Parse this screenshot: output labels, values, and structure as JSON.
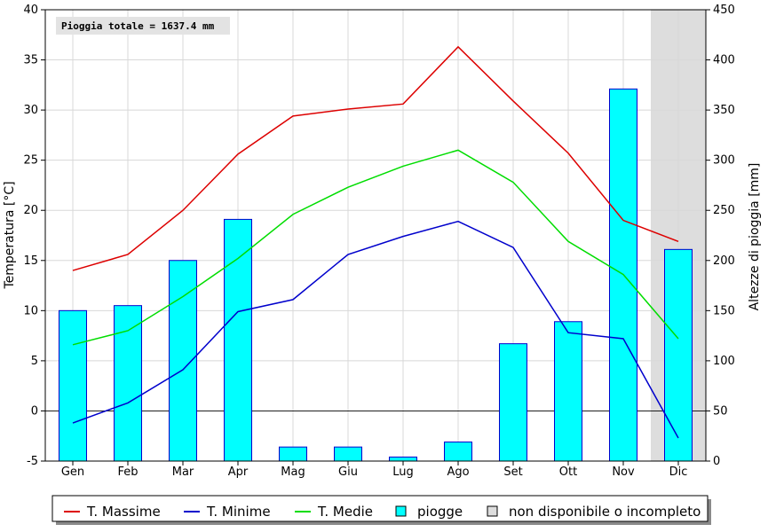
{
  "chart_data": {
    "type": "bar",
    "annotation": "Pioggia totale = 1637.4 mm",
    "categories": [
      "Gen",
      "Feb",
      "Mar",
      "Apr",
      "Mag",
      "Giu",
      "Lug",
      "Ago",
      "Set",
      "Ott",
      "Nov",
      "Dic"
    ],
    "ylabel_left": "Temperatura [°C]",
    "ylabel_right": "Altezze di pioggia [mm]",
    "ylim_left": [
      -5,
      40
    ],
    "ylim_right": [
      0,
      450
    ],
    "yticks_left": [
      "-5",
      "0",
      "5",
      "10",
      "15",
      "20",
      "25",
      "30",
      "35",
      "40"
    ],
    "yticks_right": [
      "0",
      "50",
      "100",
      "150",
      "200",
      "250",
      "300",
      "350",
      "400",
      "450"
    ],
    "grid": true,
    "legend_position": "bottom",
    "unavailable_months": [
      "Dic"
    ],
    "series": [
      {
        "name": "T. Massime",
        "kind": "line",
        "axis": "left",
        "color": "#dd0000",
        "values": [
          14.0,
          15.6,
          20.0,
          25.6,
          29.4,
          30.1,
          30.6,
          36.3,
          30.9,
          25.7,
          19.0,
          16.9
        ]
      },
      {
        "name": "T. Minime",
        "kind": "line",
        "axis": "left",
        "color": "#0000cc",
        "values": [
          -1.2,
          0.8,
          4.1,
          9.9,
          11.1,
          15.6,
          17.4,
          18.9,
          16.3,
          7.8,
          7.2,
          -2.7
        ]
      },
      {
        "name": "T. Medie",
        "kind": "line",
        "axis": "left",
        "color": "#00dd00",
        "values": [
          6.6,
          8.0,
          11.4,
          15.2,
          19.6,
          22.3,
          24.4,
          26.0,
          22.8,
          16.9,
          13.6,
          7.2
        ]
      },
      {
        "name": "piogge",
        "kind": "bar",
        "axis": "right",
        "color": "#00ffff",
        "edge": "#0000cc",
        "values": [
          150,
          155,
          200,
          241,
          14,
          14,
          4,
          19,
          117,
          139,
          371,
          211
        ]
      }
    ],
    "legend": [
      {
        "label": "T. Massime",
        "marker": "line",
        "color": "#dd0000"
      },
      {
        "label": "T. Minime",
        "marker": "line",
        "color": "#0000cc"
      },
      {
        "label": "T. Medie",
        "marker": "line",
        "color": "#00dd00"
      },
      {
        "label": "piogge",
        "marker": "box",
        "color": "#00ffff"
      },
      {
        "label": "non disponibile o incompleto",
        "marker": "box",
        "color": "#dddddd"
      }
    ]
  }
}
